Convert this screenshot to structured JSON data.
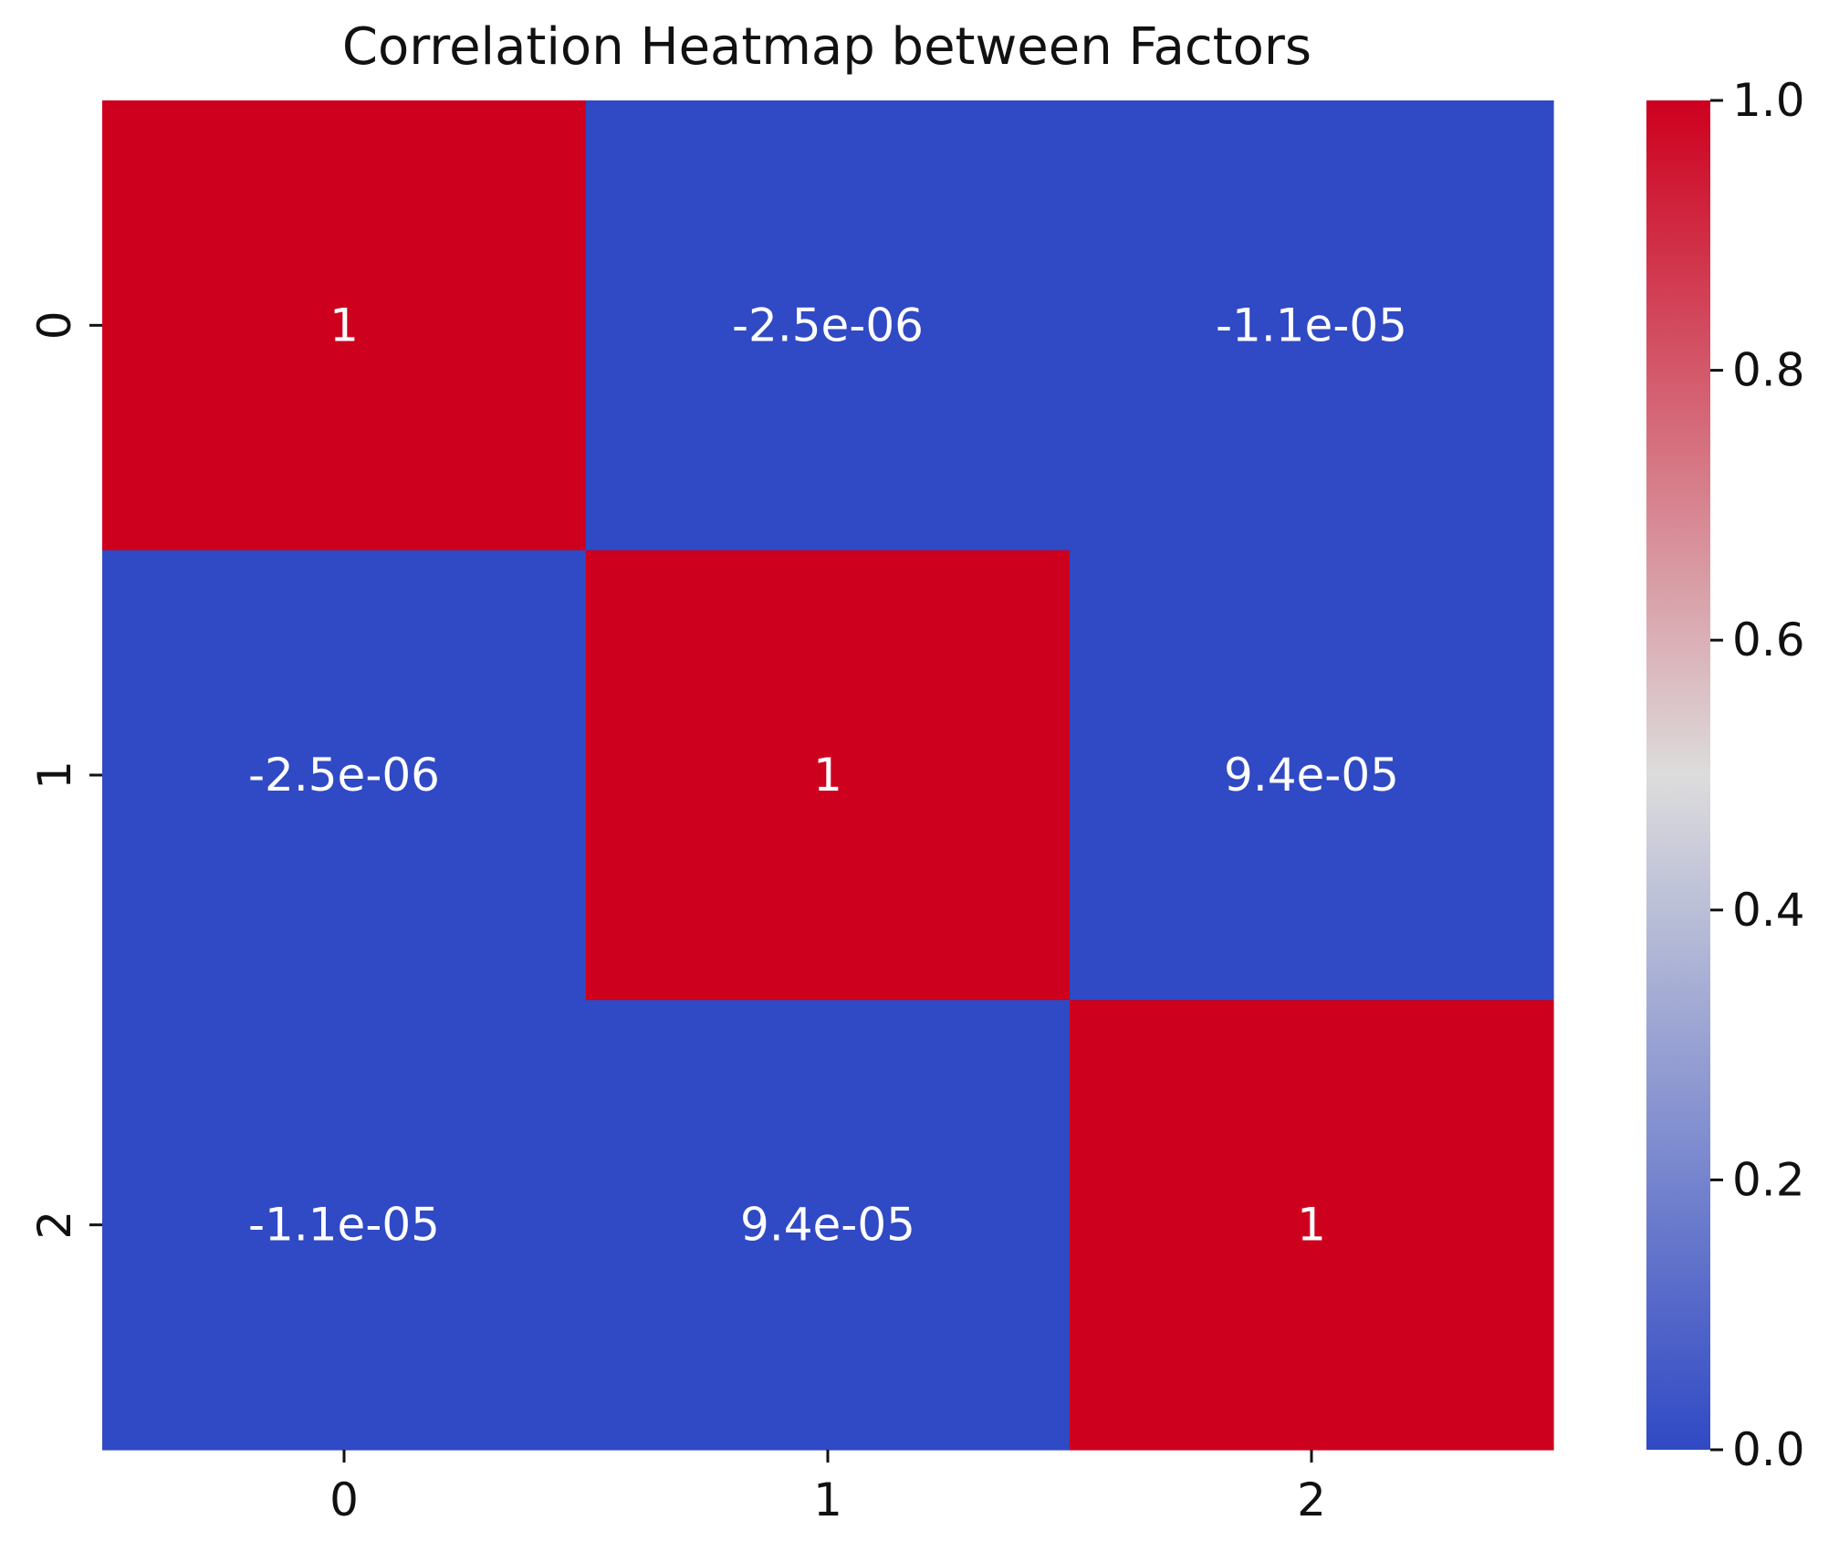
{
  "chart_data": {
    "type": "heatmap",
    "title": "Correlation Heatmap between Factors",
    "xlabel": "",
    "ylabel": "",
    "x_categories": [
      "0",
      "1",
      "2"
    ],
    "y_categories": [
      "0",
      "1",
      "2"
    ],
    "values": [
      [
        1.0,
        -2.5e-06,
        -1.1e-05
      ],
      [
        -2.5e-06,
        1.0,
        9.4e-05
      ],
      [
        -1.1e-05,
        9.4e-05,
        1.0
      ]
    ],
    "annotations": [
      [
        "1",
        "-2.5e-06",
        "-1.1e-05"
      ],
      [
        "-2.5e-06",
        "1",
        "9.4e-05"
      ],
      [
        "-1.1e-05",
        "9.4e-05",
        "1"
      ]
    ],
    "colormap": "coolwarm",
    "colorbar": {
      "range": [
        0.0,
        1.0
      ],
      "ticks": [
        0.0,
        0.2,
        0.4,
        0.6,
        0.8,
        1.0
      ],
      "tick_labels": [
        "0.0",
        "0.2",
        "0.4",
        "0.6",
        "0.8",
        "1.0"
      ]
    },
    "colors": {
      "low": "#3049c4",
      "mid": "#dddcdc",
      "high": "#cd001e"
    }
  }
}
